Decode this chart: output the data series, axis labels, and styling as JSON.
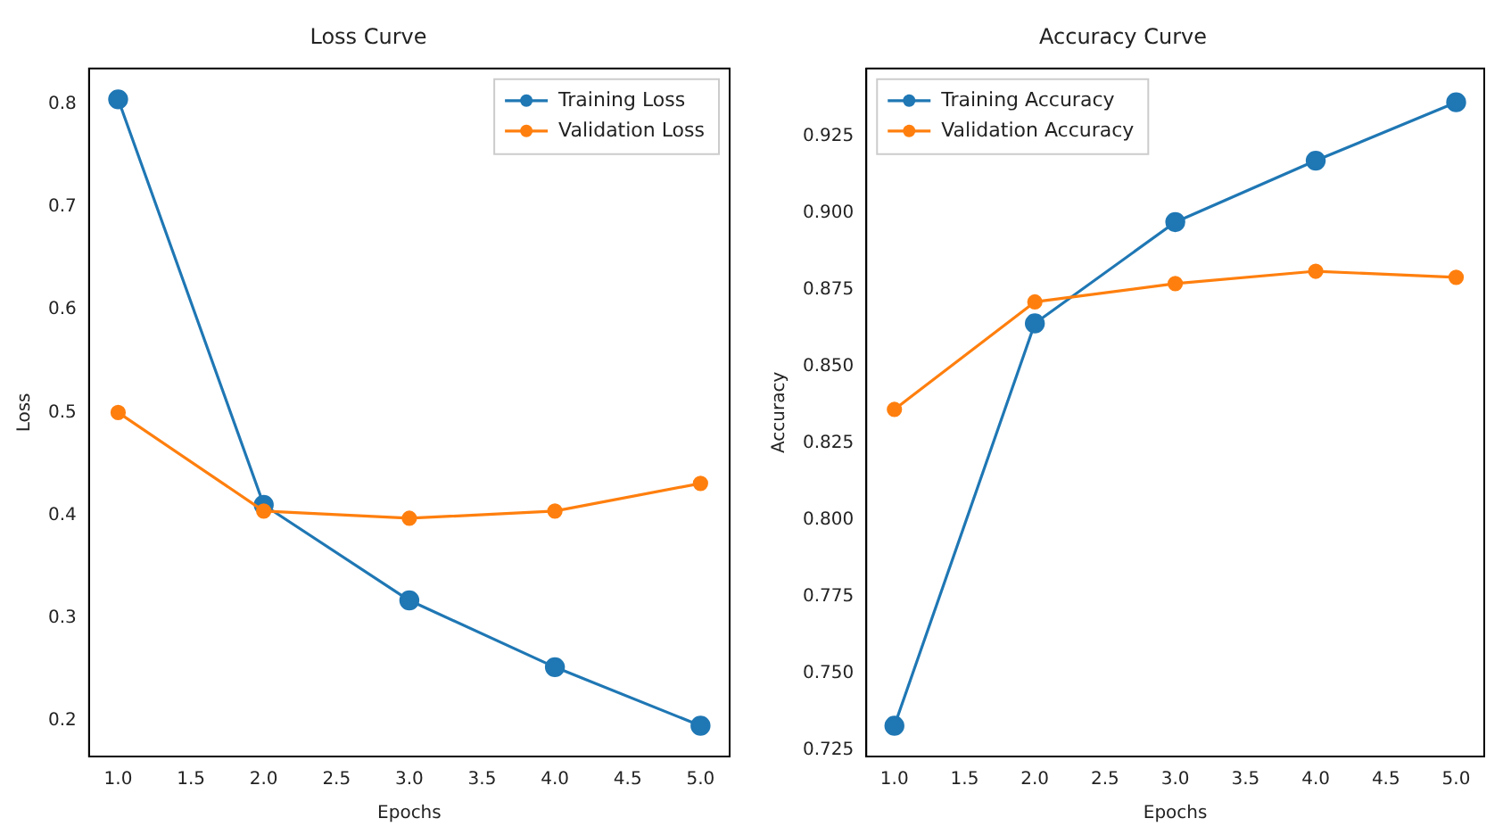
{
  "chart_data": [
    {
      "type": "line",
      "title": "Loss Curve",
      "xlabel": "Epochs",
      "ylabel": "Loss",
      "x": [
        1,
        2,
        3,
        4,
        5
      ],
      "series": [
        {
          "name": "Training Loss",
          "color": "#1f77b4",
          "values": [
            0.805,
            0.41,
            0.317,
            0.252,
            0.195
          ]
        },
        {
          "name": "Validation Loss",
          "color": "#ff7f0e",
          "values": [
            0.5,
            0.404,
            0.397,
            0.404,
            0.431
          ]
        }
      ],
      "xlim": [
        0.8,
        5.2
      ],
      "xticks": [
        {
          "value": 1,
          "label": "1.0"
        },
        1.5,
        {
          "value": 2,
          "label": "2.0"
        },
        2.5,
        {
          "value": 3,
          "label": "3.0"
        },
        3.5,
        {
          "value": 4,
          "label": "4.0"
        },
        4.5,
        {
          "value": 5,
          "label": "5.0"
        }
      ],
      "ylim": [
        0.165,
        0.835
      ],
      "yticks": [
        0.2,
        0.3,
        0.4,
        0.5,
        0.6,
        0.7,
        0.8
      ],
      "legend": "top right",
      "marker": "circle",
      "line_style": "solid",
      "grid": false
    },
    {
      "type": "line",
      "title": "Accuracy Curve",
      "xlabel": "Epochs",
      "ylabel": "Accuracy",
      "x": [
        1,
        2,
        3,
        4,
        5
      ],
      "series": [
        {
          "name": "Training Accuracy",
          "color": "#1f77b4",
          "values": [
            0.733,
            0.864,
            0.897,
            0.917,
            0.936
          ]
        },
        {
          "name": "Validation Accuracy",
          "color": "#ff7f0e",
          "values": [
            0.836,
            0.871,
            0.877,
            0.881,
            0.879
          ]
        }
      ],
      "xlim": [
        0.8,
        5.2
      ],
      "xticks": [
        {
          "value": 1,
          "label": "1.0"
        },
        1.5,
        {
          "value": 2,
          "label": "2.0"
        },
        2.5,
        {
          "value": 3,
          "label": "3.0"
        },
        3.5,
        {
          "value": 4,
          "label": "4.0"
        },
        4.5,
        {
          "value": 5,
          "label": "5.0"
        }
      ],
      "ylim": [
        0.723,
        0.947
      ],
      "yticks": [
        0.725,
        {
          "value": 0.75,
          "label": "0.750"
        },
        0.775,
        {
          "value": 0.8,
          "label": "0.800"
        },
        0.825,
        {
          "value": 0.85,
          "label": "0.850"
        },
        0.875,
        {
          "value": 0.9,
          "label": "0.900"
        },
        0.925
      ],
      "legend": "top left",
      "marker": "circle",
      "line_style": "solid",
      "grid": false
    }
  ]
}
